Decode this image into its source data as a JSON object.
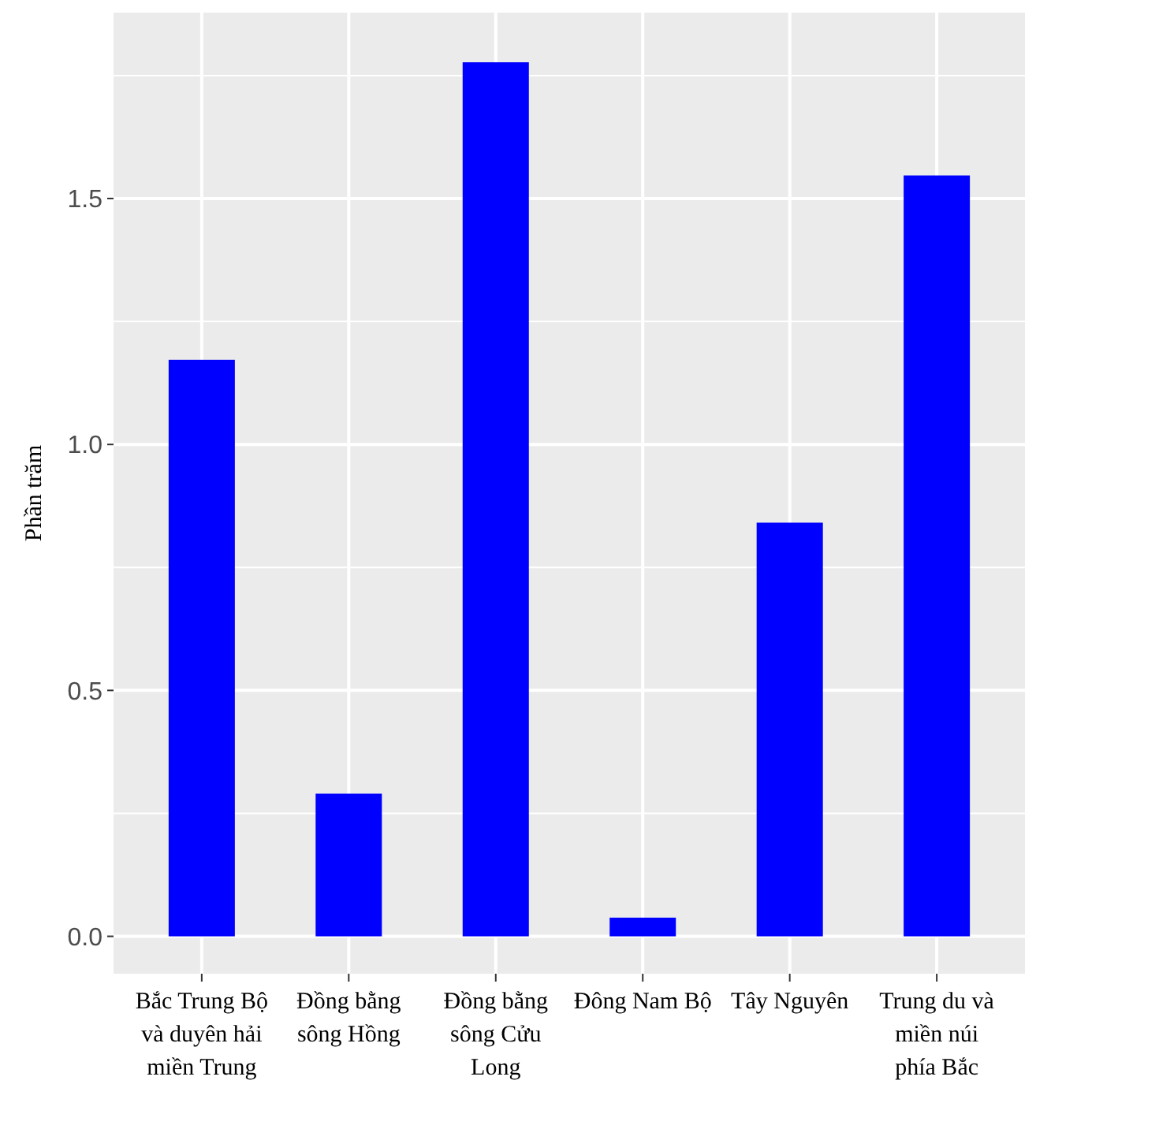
{
  "chart_data": {
    "type": "bar",
    "ylabel": "Phần trăm",
    "categories": [
      "Bắc Trung Bộ và duyên hải miền Trung",
      "Đồng bằng sông Hồng",
      "Đồng bằng sông Cửu Long",
      "Đông Nam Bộ",
      "Tây Nguyên",
      "Trung du và miền núi phía Bắc"
    ],
    "values": [
      1.172,
      0.29,
      1.777,
      0.038,
      0.841,
      1.547
    ],
    "color": "#0000ff",
    "ylim": [
      -0.076,
      1.878
    ],
    "yticks": [
      {
        "value": 0,
        "label": "0.0"
      },
      {
        "value": 0.5,
        "label": "0.5"
      },
      {
        "value": 1,
        "label": "1.0"
      },
      {
        "value": 1.5,
        "label": "1.5"
      }
    ],
    "grid": true
  }
}
